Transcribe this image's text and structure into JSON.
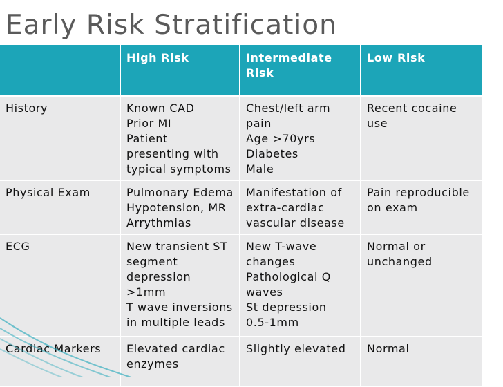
{
  "title": "Early Risk Stratification",
  "table": {
    "header": [
      "High Risk",
      "Intermediate Risk",
      "Low Risk"
    ],
    "rows": [
      [
        [
          "History"
        ],
        [
          "Known CAD",
          "Prior MI",
          "Patient",
          "presenting with",
          "typical symptoms"
        ],
        [
          "Chest/left arm",
          "pain",
          "Age >70yrs",
          "Diabetes",
          "Male"
        ],
        [
          "Recent cocaine",
          "use"
        ]
      ],
      [
        [
          "Physical Exam"
        ],
        [
          "Pulmonary Edema",
          "Hypotension, MR",
          "Arrythmias"
        ],
        [
          "Manifestation of",
          "extra-cardiac",
          "vascular disease"
        ],
        [
          "Pain reproducible",
          "on exam"
        ]
      ],
      [
        [
          "ECG"
        ],
        [
          "New transient ST",
          "segment",
          "depression",
          ">1mm",
          "T wave inversions",
          "in multiple leads"
        ],
        [
          "New T-wave",
          "changes",
          "Pathological Q",
          "waves",
          "St depression",
          "0.5-1mm"
        ],
        [
          "Normal or",
          "unchanged"
        ]
      ],
      [
        [
          "Cardiac Markers"
        ],
        [
          "Elevated cardiac",
          "enzymes"
        ],
        [
          "Slightly elevated"
        ],
        [
          "Normal"
        ]
      ]
    ]
  }
}
